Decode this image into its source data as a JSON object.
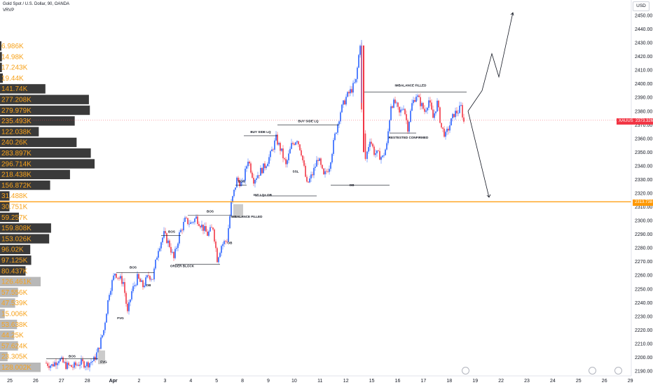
{
  "header": {
    "title": "Gold Spot / U.S. Dollar, 90, OANDA",
    "indicator": "VRVP"
  },
  "price_axis": {
    "currency": "USD"
  },
  "tags": {
    "symbol": "XAUUSD",
    "last_price": "2373.326",
    "level_price": "2313.738"
  },
  "colors": {
    "up": "#2962ff",
    "down": "#f23645",
    "level": "#ff9800",
    "vp_dark": "#3a3a3a",
    "vp_light": "#b8b8b8",
    "vp_text": "#f7a21b"
  },
  "chart_data": {
    "type": "candlestick",
    "ylim": [
      2185,
      2460
    ],
    "y_ticks": [
      2190,
      2200,
      2210,
      2220,
      2230,
      2240,
      2250,
      2260,
      2270,
      2280,
      2290,
      2300,
      2310,
      2320,
      2330,
      2340,
      2350,
      2360,
      2370,
      2380,
      2390,
      2400,
      2410,
      2420,
      2430,
      2440,
      2450
    ],
    "x_ticks": [
      "25",
      "26",
      "27",
      "28",
      "Apr",
      "2",
      "3",
      "4",
      "5",
      "8",
      "9",
      "10",
      "11",
      "12",
      "15",
      "16",
      "17",
      "18",
      "19",
      "22",
      "23",
      "24",
      "25",
      "26",
      "29"
    ],
    "volume_profile": [
      {
        "label": "6.986K",
        "width": 0.01,
        "tone": "dark"
      },
      {
        "label": "14.98K",
        "width": 0.02,
        "tone": "dark"
      },
      {
        "label": "17.243K",
        "width": 0.02,
        "tone": "dark"
      },
      {
        "label": "19.44K",
        "width": 0.03,
        "tone": "dark"
      },
      {
        "label": "141.74K",
        "width": 0.48,
        "tone": "dark"
      },
      {
        "label": "277.208K",
        "width": 0.94,
        "tone": "dark"
      },
      {
        "label": "279.979K",
        "width": 0.95,
        "tone": "dark"
      },
      {
        "label": "235.493K",
        "width": 0.79,
        "tone": "dark"
      },
      {
        "label": "122.038K",
        "width": 0.41,
        "tone": "dark"
      },
      {
        "label": "240.26K",
        "width": 0.81,
        "tone": "dark"
      },
      {
        "label": "283.897K",
        "width": 0.96,
        "tone": "dark"
      },
      {
        "label": "296.714K",
        "width": 1.0,
        "tone": "dark"
      },
      {
        "label": "218.438K",
        "width": 0.74,
        "tone": "dark"
      },
      {
        "label": "156.872K",
        "width": 0.53,
        "tone": "dark"
      },
      {
        "label": "31.488K",
        "width": 0.1,
        "tone": "dark"
      },
      {
        "label": "30.751K",
        "width": 0.1,
        "tone": "dark"
      },
      {
        "label": "59.257K",
        "width": 0.2,
        "tone": "dark"
      },
      {
        "label": "159.808K",
        "width": 0.54,
        "tone": "dark"
      },
      {
        "label": "153.026K",
        "width": 0.52,
        "tone": "dark"
      },
      {
        "label": "96.02K",
        "width": 0.32,
        "tone": "dark"
      },
      {
        "label": "97.125K",
        "width": 0.33,
        "tone": "dark"
      },
      {
        "label": "80.437K",
        "width": 0.27,
        "tone": "dark"
      },
      {
        "label": "126.461K",
        "width": 0.43,
        "tone": "light"
      },
      {
        "label": "57.556K",
        "width": 0.19,
        "tone": "light"
      },
      {
        "label": "47.539K",
        "width": 0.16,
        "tone": "light"
      },
      {
        "label": "15.006K",
        "width": 0.05,
        "tone": "light"
      },
      {
        "label": "53.638K",
        "width": 0.18,
        "tone": "light"
      },
      {
        "label": "44.25K",
        "width": 0.15,
        "tone": "light"
      },
      {
        "label": "57.624K",
        "width": 0.19,
        "tone": "light"
      },
      {
        "label": "23.305K",
        "width": 0.08,
        "tone": "light"
      },
      {
        "label": "128.002K",
        "width": 0.43,
        "tone": "light"
      }
    ],
    "candle_anchors": [
      {
        "x": 66,
        "p": 2196
      },
      {
        "x": 76,
        "p": 2194
      },
      {
        "x": 86,
        "p": 2199
      },
      {
        "x": 96,
        "p": 2194
      },
      {
        "x": 106,
        "p": 2193
      },
      {
        "x": 116,
        "p": 2196
      },
      {
        "x": 126,
        "p": 2195
      },
      {
        "x": 136,
        "p": 2198
      },
      {
        "x": 142,
        "p": 2205
      },
      {
        "x": 150,
        "p": 2220
      },
      {
        "x": 158,
        "p": 2248
      },
      {
        "x": 166,
        "p": 2262
      },
      {
        "x": 172,
        "p": 2258
      },
      {
        "x": 178,
        "p": 2255
      },
      {
        "x": 184,
        "p": 2232
      },
      {
        "x": 190,
        "p": 2248
      },
      {
        "x": 198,
        "p": 2258
      },
      {
        "x": 206,
        "p": 2252
      },
      {
        "x": 214,
        "p": 2260
      },
      {
        "x": 220,
        "p": 2258
      },
      {
        "x": 228,
        "p": 2280
      },
      {
        "x": 236,
        "p": 2290
      },
      {
        "x": 244,
        "p": 2282
      },
      {
        "x": 250,
        "p": 2272
      },
      {
        "x": 258,
        "p": 2290
      },
      {
        "x": 266,
        "p": 2300
      },
      {
        "x": 274,
        "p": 2298
      },
      {
        "x": 282,
        "p": 2302
      },
      {
        "x": 290,
        "p": 2296
      },
      {
        "x": 298,
        "p": 2290
      },
      {
        "x": 306,
        "p": 2295
      },
      {
        "x": 312,
        "p": 2272
      },
      {
        "x": 318,
        "p": 2282
      },
      {
        "x": 326,
        "p": 2286
      },
      {
        "x": 332,
        "p": 2312
      },
      {
        "x": 340,
        "p": 2330
      },
      {
        "x": 348,
        "p": 2326
      },
      {
        "x": 356,
        "p": 2345
      },
      {
        "x": 364,
        "p": 2330
      },
      {
        "x": 372,
        "p": 2335
      },
      {
        "x": 380,
        "p": 2340
      },
      {
        "x": 388,
        "p": 2348
      },
      {
        "x": 396,
        "p": 2360
      },
      {
        "x": 404,
        "p": 2350
      },
      {
        "x": 410,
        "p": 2340
      },
      {
        "x": 418,
        "p": 2355
      },
      {
        "x": 426,
        "p": 2360
      },
      {
        "x": 432,
        "p": 2350
      },
      {
        "x": 440,
        "p": 2326
      },
      {
        "x": 448,
        "p": 2334
      },
      {
        "x": 456,
        "p": 2346
      },
      {
        "x": 464,
        "p": 2332
      },
      {
        "x": 472,
        "p": 2340
      },
      {
        "x": 480,
        "p": 2362
      },
      {
        "x": 488,
        "p": 2380
      },
      {
        "x": 496,
        "p": 2390
      },
      {
        "x": 504,
        "p": 2396
      },
      {
        "x": 510,
        "p": 2402
      },
      {
        "x": 516,
        "p": 2430
      },
      {
        "x": 519,
        "p": 2380
      },
      {
        "x": 524,
        "p": 2345
      },
      {
        "x": 530,
        "p": 2360
      },
      {
        "x": 536,
        "p": 2350
      },
      {
        "x": 542,
        "p": 2348
      },
      {
        "x": 548,
        "p": 2346
      },
      {
        "x": 554,
        "p": 2355
      },
      {
        "x": 560,
        "p": 2385
      },
      {
        "x": 566,
        "p": 2386
      },
      {
        "x": 572,
        "p": 2378
      },
      {
        "x": 578,
        "p": 2384
      },
      {
        "x": 584,
        "p": 2368
      },
      {
        "x": 590,
        "p": 2385
      },
      {
        "x": 596,
        "p": 2392
      },
      {
        "x": 602,
        "p": 2386
      },
      {
        "x": 608,
        "p": 2380
      },
      {
        "x": 614,
        "p": 2388
      },
      {
        "x": 620,
        "p": 2375
      },
      {
        "x": 626,
        "p": 2386
      },
      {
        "x": 632,
        "p": 2368
      },
      {
        "x": 638,
        "p": 2362
      },
      {
        "x": 644,
        "p": 2370
      },
      {
        "x": 650,
        "p": 2378
      },
      {
        "x": 656,
        "p": 2380
      },
      {
        "x": 660,
        "p": 2383
      },
      {
        "x": 664,
        "p": 2372
      }
    ],
    "levels": [
      {
        "name": "orange-level",
        "price": 2313.738
      },
      {
        "name": "last-price",
        "price": 2373.326
      }
    ],
    "forecast_path": [
      {
        "x": 668,
        "p": 2380
      },
      {
        "x": 688,
        "p": 2395
      },
      {
        "x": 702,
        "p": 2422
      },
      {
        "x": 712,
        "p": 2405
      },
      {
        "x": 732,
        "p": 2452
      }
    ],
    "forecast_down": [
      {
        "x": 668,
        "p": 2380
      },
      {
        "x": 698,
        "p": 2317
      }
    ],
    "annotations": [
      {
        "text": "BOS",
        "x": 103,
        "p": 2200
      },
      {
        "text": "FVG",
        "x": 148,
        "p": 2196
      },
      {
        "text": "FVG",
        "x": 172,
        "p": 2228
      },
      {
        "text": "OB",
        "x": 212,
        "p": 2252
      },
      {
        "text": "BOS",
        "x": 190,
        "p": 2265
      },
      {
        "text": "ORDER BLOCK",
        "x": 260,
        "p": 2266
      },
      {
        "text": "BOS",
        "x": 245,
        "p": 2291
      },
      {
        "text": "BOS",
        "x": 300,
        "p": 2306
      },
      {
        "text": "OB",
        "x": 328,
        "p": 2283
      },
      {
        "text": "IMBALANCE FILLED",
        "x": 352,
        "p": 2302
      },
      {
        "text": "BOS",
        "x": 345,
        "p": 2328
      },
      {
        "text": "INT LQ+ OB",
        "x": 375,
        "p": 2318
      },
      {
        "text": "SSL",
        "x": 422,
        "p": 2335
      },
      {
        "text": "BUY SIDE LQ",
        "x": 372,
        "p": 2364
      },
      {
        "text": "BUY SIDE LQ",
        "x": 440,
        "p": 2372
      },
      {
        "text": "OB",
        "x": 502,
        "p": 2325
      },
      {
        "text": "RESTESTED CONFIRMED",
        "x": 583,
        "p": 2360
      },
      {
        "text": "IMBALANCE FILLED",
        "x": 586,
        "p": 2398
      }
    ]
  }
}
